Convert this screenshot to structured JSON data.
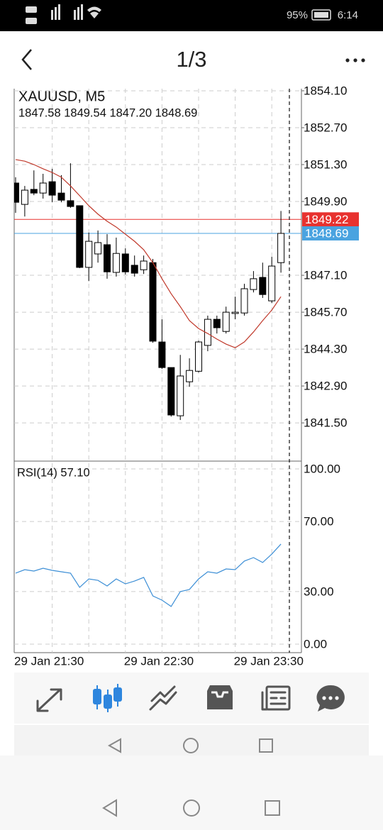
{
  "status_bar": {
    "battery": "95%",
    "time": "6:14"
  },
  "header": {
    "title": "1/3"
  },
  "chart_data": {
    "type": "candlestick",
    "title": "XAUUSD, M5",
    "info": "1847.58 1849.54 1847.20 1848.69",
    "categories": [
      "29 Jan 21:30",
      null,
      null,
      null,
      null,
      null,
      null,
      null,
      null,
      null,
      null,
      null,
      "29 Jan 22:30",
      null,
      null,
      null,
      null,
      null,
      null,
      null,
      null,
      null,
      null,
      null,
      "29 Jan 23:30",
      null,
      null,
      null,
      null,
      null
    ],
    "open": [
      1850.6,
      1849.79,
      1850.36,
      1850.22,
      1850.65,
      1850.22,
      1849.93,
      1849.74,
      1847.4,
      1847.91,
      1848.26,
      1847.21,
      1847.91,
      1847.48,
      1847.31,
      1847.58,
      1844.57,
      1843.6,
      1841.77,
      1843.06,
      1843.46,
      1844.44,
      1845.43,
      1844.97,
      1845.65,
      1845.67,
      1846.56,
      1847.02,
      1846.13,
      1847.58
    ],
    "high": [
      1850.82,
      1850.49,
      1851.08,
      1850.95,
      1851.14,
      1850.9,
      1851.35,
      1849.74,
      1848.72,
      1848.8,
      1848.66,
      1848.53,
      1848.12,
      1847.85,
      1847.85,
      1847.72,
      1845.43,
      1843.6,
      1844.08,
      1843.95,
      1844.62,
      1845.57,
      1845.57,
      1845.91,
      1846.29,
      1846.78,
      1847.26,
      1847.58,
      1847.8,
      1849.54
    ],
    "low": [
      1849.47,
      1849.33,
      1850.14,
      1850.01,
      1849.87,
      1849.87,
      1849.66,
      1847.37,
      1846.88,
      1847.58,
      1846.97,
      1847.05,
      1847.13,
      1847.05,
      1847.15,
      1844.54,
      1843.55,
      1841.74,
      1841.61,
      1842.87,
      1843.41,
      1844.22,
      1844.89,
      1844.89,
      1845.43,
      1845.57,
      1846.45,
      1846.24,
      1846.05,
      1847.2
    ],
    "close": [
      1849.87,
      1850.33,
      1850.22,
      1850.6,
      1850.14,
      1849.95,
      1849.71,
      1847.4,
      1848.39,
      1848.34,
      1847.23,
      1847.93,
      1847.23,
      1847.18,
      1847.64,
      1844.6,
      1843.6,
      1841.8,
      1843.28,
      1843.49,
      1844.57,
      1845.43,
      1845.11,
      1845.7,
      1845.7,
      1846.59,
      1846.97,
      1846.37,
      1847.45,
      1848.69
    ],
    "up_color": "#ffffff",
    "down_color": "#000000",
    "ma": {
      "color": "#c0392b",
      "values": [
        1851.49,
        1851.43,
        1851.3,
        1851.14,
        1851.0,
        1850.82,
        1850.49,
        1850.12,
        1849.74,
        1849.42,
        1849.15,
        1848.93,
        1848.66,
        1848.39,
        1848.07,
        1847.58,
        1846.97,
        1846.4,
        1845.91,
        1845.38,
        1845.08,
        1844.89,
        1844.68,
        1844.49,
        1844.35,
        1844.57,
        1844.95,
        1845.38,
        1845.78,
        1846.29
      ]
    },
    "price_lines": [
      {
        "value": 1849.22,
        "color": "#e8322f"
      },
      {
        "value": 1848.69,
        "color": "#4aa3e0"
      }
    ],
    "ylim": [
      1840.05,
      1854.18
    ],
    "yticks": [
      {
        "value": 1854.1,
        "label": "1854.10"
      },
      {
        "value": 1852.7,
        "label": "1852.70"
      },
      {
        "value": 1851.3,
        "label": "1851.30"
      },
      {
        "value": 1849.9,
        "label": "1849.90"
      },
      {
        "value": 1847.1,
        "label": "1847.10"
      },
      {
        "value": 1845.7,
        "label": "1845.70"
      },
      {
        "value": 1844.3,
        "label": "1844.30"
      },
      {
        "value": 1842.9,
        "label": "1842.90"
      },
      {
        "value": 1841.5,
        "label": "1841.50"
      }
    ],
    "grid": true,
    "indicator": {
      "title": "RSI(14) 57.10",
      "color": "#3d8fd6",
      "values": [
        40.5,
        42.5,
        41.7,
        43.3,
        42.1,
        41.3,
        40.5,
        32.4,
        37.2,
        36.4,
        33.2,
        37.2,
        34.4,
        36.0,
        38.1,
        27.5,
        25.1,
        21.5,
        30.0,
        31.2,
        37.2,
        41.3,
        40.5,
        42.9,
        42.5,
        47.4,
        49.4,
        46.6,
        51.4,
        57.1
      ],
      "ylim": [
        0,
        100
      ],
      "yticks": [
        {
          "value": 100,
          "label": "100.00"
        },
        {
          "value": 70,
          "label": "70.00"
        },
        {
          "value": 30,
          "label": "30.00"
        },
        {
          "value": 0,
          "label": "0.00"
        }
      ]
    }
  }
}
